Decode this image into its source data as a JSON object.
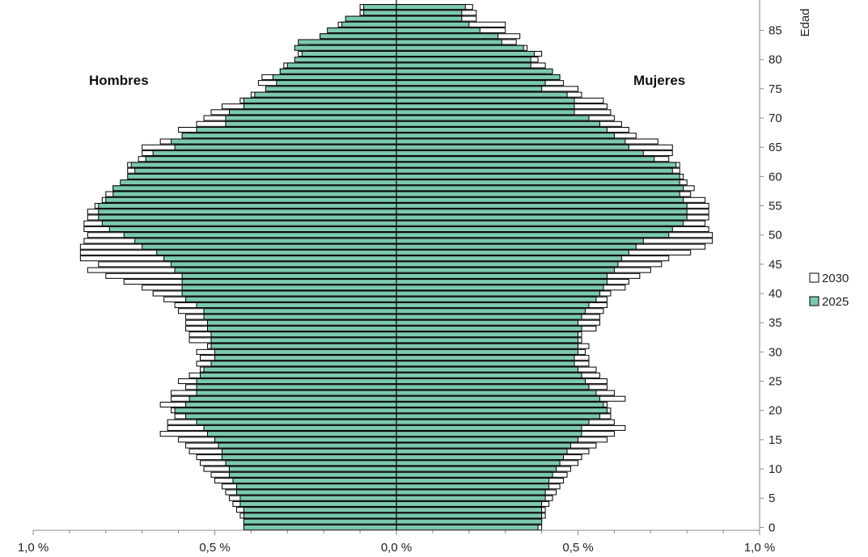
{
  "chart_data": {
    "type": "bar",
    "orientation": "horizontal",
    "subtype": "population-pyramid",
    "title": "",
    "ylabel": "Edad",
    "xlabel": "",
    "left_label": "Hombres",
    "right_label": "Mujeres",
    "xlim": [
      -1.0,
      1.0
    ],
    "x_tick_values": [
      -1.0,
      -0.5,
      0.0,
      0.5,
      1.0
    ],
    "x_tick_labels": [
      "1,0 %",
      "0,5 %",
      "0,0 %",
      "0,5 %",
      "1,0 %"
    ],
    "y_tick_values": [
      0,
      5,
      10,
      15,
      20,
      25,
      30,
      35,
      40,
      45,
      50,
      55,
      60,
      65,
      70,
      75,
      80,
      85
    ],
    "y_tick_labels": [
      "0",
      "5",
      "10",
      "15",
      "20",
      "25",
      "30",
      "35",
      "40",
      "45",
      "50",
      "55",
      "60",
      "65",
      "70",
      "75",
      "80",
      "85"
    ],
    "ages": [
      0,
      1,
      2,
      3,
      4,
      5,
      6,
      7,
      8,
      9,
      10,
      11,
      12,
      13,
      14,
      15,
      16,
      17,
      18,
      19,
      20,
      21,
      22,
      23,
      24,
      25,
      26,
      27,
      28,
      29,
      30,
      31,
      32,
      33,
      34,
      35,
      36,
      37,
      38,
      39,
      40,
      41,
      42,
      43,
      44,
      45,
      46,
      47,
      48,
      49,
      50,
      51,
      52,
      53,
      54,
      55,
      56,
      57,
      58,
      59,
      60,
      61,
      62,
      63,
      64,
      65,
      66,
      67,
      68,
      69,
      70,
      71,
      72,
      73,
      74,
      75,
      76,
      77,
      78,
      79,
      80,
      81,
      82,
      83,
      84,
      85,
      86,
      87,
      88,
      89
    ],
    "legend": [
      "2030",
      "2025"
    ],
    "series": [
      {
        "name": "2030",
        "color": "#ffffff",
        "male": [
          0.42,
          0.42,
          0.43,
          0.44,
          0.45,
          0.46,
          0.47,
          0.48,
          0.5,
          0.51,
          0.53,
          0.54,
          0.55,
          0.57,
          0.58,
          0.6,
          0.65,
          0.63,
          0.63,
          0.61,
          0.62,
          0.65,
          0.62,
          0.62,
          0.58,
          0.6,
          0.57,
          0.54,
          0.55,
          0.54,
          0.55,
          0.52,
          0.57,
          0.57,
          0.58,
          0.58,
          0.58,
          0.6,
          0.61,
          0.64,
          0.67,
          0.7,
          0.75,
          0.8,
          0.85,
          0.82,
          0.87,
          0.87,
          0.87,
          0.86,
          0.85,
          0.86,
          0.86,
          0.85,
          0.85,
          0.83,
          0.81,
          0.8,
          0.78,
          0.75,
          0.73,
          0.74,
          0.74,
          0.71,
          0.7,
          0.7,
          0.65,
          0.57,
          0.6,
          0.55,
          0.53,
          0.51,
          0.48,
          0.43,
          0.4,
          0.35,
          0.38,
          0.37,
          0.32,
          0.31,
          0.27,
          0.27,
          0.24,
          0.2,
          0.21,
          0.17,
          0.16,
          0.12,
          0.1,
          0.1
        ],
        "female": [
          0.4,
          0.4,
          0.41,
          0.41,
          0.42,
          0.43,
          0.44,
          0.45,
          0.46,
          0.47,
          0.48,
          0.5,
          0.51,
          0.53,
          0.55,
          0.58,
          0.6,
          0.63,
          0.6,
          0.59,
          0.59,
          0.58,
          0.63,
          0.6,
          0.58,
          0.58,
          0.56,
          0.55,
          0.53,
          0.53,
          0.52,
          0.53,
          0.51,
          0.51,
          0.55,
          0.56,
          0.56,
          0.57,
          0.58,
          0.58,
          0.59,
          0.63,
          0.64,
          0.67,
          0.7,
          0.73,
          0.75,
          0.81,
          0.85,
          0.87,
          0.87,
          0.86,
          0.85,
          0.86,
          0.86,
          0.86,
          0.85,
          0.81,
          0.82,
          0.8,
          0.79,
          0.78,
          0.78,
          0.75,
          0.76,
          0.76,
          0.72,
          0.66,
          0.64,
          0.62,
          0.6,
          0.59,
          0.58,
          0.57,
          0.51,
          0.5,
          0.46,
          0.45,
          0.41,
          0.41,
          0.39,
          0.4,
          0.36,
          0.33,
          0.34,
          0.3,
          0.3,
          0.22,
          0.22,
          0.21
        ]
      },
      {
        "name": "2025",
        "color": "#7cc8b0",
        "male": [
          0.42,
          0.42,
          0.42,
          0.42,
          0.43,
          0.43,
          0.44,
          0.44,
          0.45,
          0.46,
          0.46,
          0.47,
          0.48,
          0.48,
          0.49,
          0.5,
          0.52,
          0.53,
          0.55,
          0.58,
          0.61,
          0.58,
          0.57,
          0.55,
          0.55,
          0.55,
          0.54,
          0.53,
          0.51,
          0.5,
          0.5,
          0.51,
          0.51,
          0.51,
          0.52,
          0.52,
          0.53,
          0.53,
          0.55,
          0.58,
          0.59,
          0.59,
          0.59,
          0.59,
          0.61,
          0.62,
          0.64,
          0.66,
          0.7,
          0.72,
          0.75,
          0.79,
          0.81,
          0.82,
          0.82,
          0.82,
          0.8,
          0.78,
          0.78,
          0.76,
          0.74,
          0.72,
          0.73,
          0.69,
          0.67,
          0.61,
          0.62,
          0.59,
          0.55,
          0.47,
          0.47,
          0.46,
          0.42,
          0.42,
          0.39,
          0.36,
          0.33,
          0.34,
          0.32,
          0.3,
          0.28,
          0.26,
          0.28,
          0.27,
          0.21,
          0.19,
          0.15,
          0.14,
          0.09,
          0.09
        ],
        "female": [
          0.39,
          0.4,
          0.4,
          0.4,
          0.4,
          0.41,
          0.41,
          0.42,
          0.42,
          0.43,
          0.44,
          0.45,
          0.46,
          0.47,
          0.48,
          0.5,
          0.51,
          0.51,
          0.53,
          0.56,
          0.58,
          0.57,
          0.56,
          0.55,
          0.53,
          0.52,
          0.51,
          0.5,
          0.49,
          0.49,
          0.5,
          0.5,
          0.5,
          0.5,
          0.51,
          0.5,
          0.51,
          0.52,
          0.53,
          0.55,
          0.56,
          0.57,
          0.58,
          0.58,
          0.6,
          0.61,
          0.62,
          0.64,
          0.66,
          0.68,
          0.75,
          0.76,
          0.79,
          0.8,
          0.8,
          0.8,
          0.79,
          0.78,
          0.79,
          0.78,
          0.78,
          0.76,
          0.77,
          0.71,
          0.68,
          0.64,
          0.63,
          0.6,
          0.58,
          0.56,
          0.53,
          0.49,
          0.49,
          0.49,
          0.47,
          0.4,
          0.41,
          0.45,
          0.43,
          0.37,
          0.37,
          0.38,
          0.35,
          0.29,
          0.28,
          0.23,
          0.2,
          0.18,
          0.18,
          0.19
        ]
      }
    ]
  }
}
